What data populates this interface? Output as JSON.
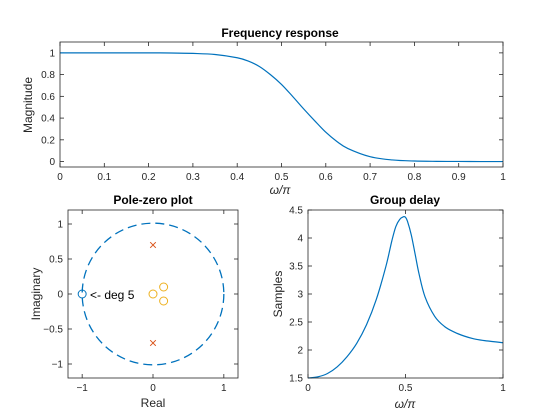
{
  "chart_data": [
    {
      "type": "line",
      "title": "Frequency response",
      "xlabel": "ω/π",
      "ylabel": "Magnitude",
      "xlim": [
        0,
        1
      ],
      "ylim": [
        -0.05,
        1.1
      ],
      "xticks": [
        0,
        0.1,
        0.2,
        0.3,
        0.4,
        0.5,
        0.6,
        0.7,
        0.8,
        0.9,
        1
      ],
      "yticks": [
        0,
        0.2,
        0.4,
        0.6,
        0.8,
        1
      ],
      "color": "#0072BD",
      "series": [
        {
          "x": [
            0,
            0.05,
            0.1,
            0.15,
            0.2,
            0.25,
            0.3,
            0.35,
            0.4,
            0.425,
            0.45,
            0.475,
            0.5,
            0.525,
            0.55,
            0.575,
            0.6,
            0.625,
            0.65,
            0.7,
            0.75,
            0.8,
            0.85,
            0.9,
            0.95,
            1
          ],
          "y": [
            1,
            1,
            1,
            1,
            1,
            0.999,
            0.995,
            0.985,
            0.955,
            0.925,
            0.875,
            0.8,
            0.71,
            0.6,
            0.485,
            0.375,
            0.27,
            0.185,
            0.12,
            0.045,
            0.015,
            0.005,
            0.002,
            0.001,
            0,
            0
          ]
        }
      ]
    },
    {
      "type": "scatter",
      "title": "Pole-zero plot",
      "xlabel": "Real",
      "ylabel": "Imaginary",
      "xlim": [
        -1.2,
        1.2
      ],
      "ylim": [
        -1.2,
        1.2
      ],
      "xticks": [
        -1,
        0,
        1
      ],
      "yticks": [
        -1,
        -0.5,
        0,
        0.5,
        1
      ],
      "unit_circle": true,
      "circle_color": "#0072BD",
      "zeros": [
        {
          "x": -1,
          "y": 0,
          "color": "#0072BD"
        },
        {
          "x": 0,
          "y": 0,
          "color": "#EDB120"
        },
        {
          "x": 0.15,
          "y": 0.1,
          "color": "#EDB120"
        },
        {
          "x": 0.15,
          "y": -0.1,
          "color": "#EDB120"
        }
      ],
      "poles": [
        {
          "x": 0,
          "y": 0.7,
          "color": "#D95319"
        },
        {
          "x": 0,
          "y": -0.7,
          "color": "#D95319"
        }
      ],
      "annotation": "<- deg 5"
    },
    {
      "type": "line",
      "title": "Group delay",
      "xlabel": "ω/π",
      "ylabel": "Samples",
      "xlim": [
        0,
        1
      ],
      "ylim": [
        1.5,
        4.5
      ],
      "xticks": [
        0,
        0.5,
        1
      ],
      "yticks": [
        1.5,
        2,
        2.5,
        3,
        3.5,
        4,
        4.5
      ],
      "color": "#0072BD",
      "series": [
        {
          "x": [
            0,
            0.05,
            0.1,
            0.15,
            0.2,
            0.25,
            0.3,
            0.35,
            0.4,
            0.43,
            0.45,
            0.47,
            0.49,
            0.5,
            0.51,
            0.53,
            0.55,
            0.57,
            0.6,
            0.65,
            0.7,
            0.75,
            0.8,
            0.85,
            0.9,
            0.95,
            1
          ],
          "y": [
            1.5,
            1.52,
            1.58,
            1.7,
            1.88,
            2.12,
            2.45,
            2.9,
            3.5,
            3.95,
            4.2,
            4.33,
            4.38,
            4.37,
            4.3,
            4.05,
            3.7,
            3.35,
            2.95,
            2.6,
            2.42,
            2.32,
            2.25,
            2.2,
            2.17,
            2.15,
            2.13
          ]
        }
      ]
    }
  ]
}
